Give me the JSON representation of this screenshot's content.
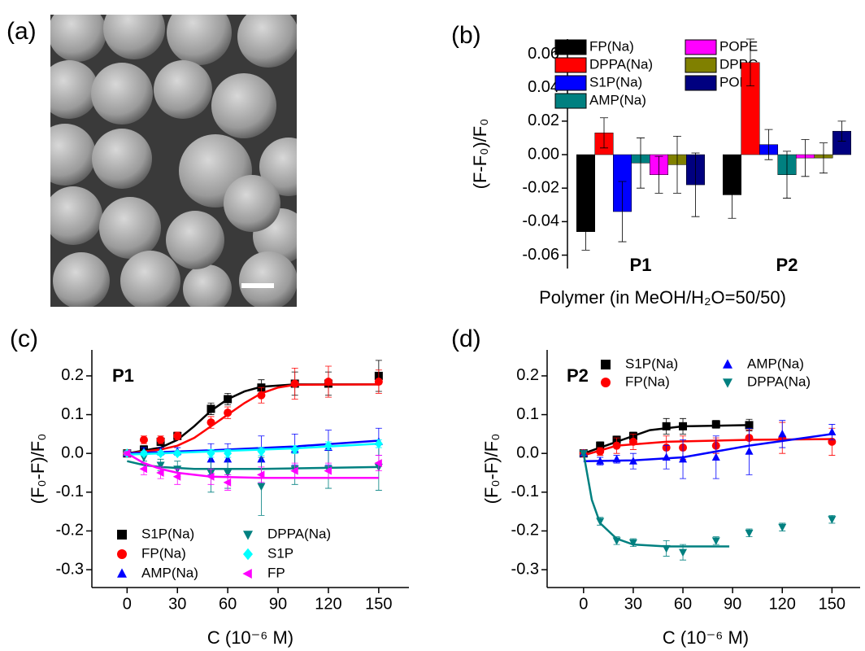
{
  "image_panel": {
    "label": "(a)"
  },
  "chart_data": [
    {
      "type": "bar",
      "panel_label": "(b)",
      "ylabel": "(F-F₀)/F₀",
      "xlabel": "Polymer (in MeOH/H₂O=50/50)",
      "categories": [
        "P1",
        "P2"
      ],
      "ylim": [
        -0.068,
        0.069
      ],
      "yticks": [
        -0.06,
        -0.04,
        -0.02,
        {
          "value": 0,
          "label": "0.00"
        },
        0.02,
        0.04,
        0.06
      ],
      "series": [
        {
          "name": "FP(Na)",
          "color": "#000000",
          "values": [
            -0.046,
            -0.024
          ],
          "errors": [
            0.011,
            0.014
          ]
        },
        {
          "name": "DPPA(Na)",
          "color": "#ff0000",
          "values": [
            0.013,
            0.055
          ],
          "errors": [
            0.009,
            0.014
          ]
        },
        {
          "name": "S1P(Na)",
          "color": "#0000ff",
          "values": [
            -0.034,
            0.006
          ],
          "errors": [
            0.018,
            0.009
          ]
        },
        {
          "name": "AMP(Na)",
          "color": "#008080",
          "values": [
            -0.005,
            -0.012
          ],
          "errors": [
            0.015,
            0.014
          ]
        },
        {
          "name": "POPE",
          "color": "#ff00ff",
          "values": [
            -0.012,
            -0.002
          ],
          "errors": [
            0.011,
            0.011
          ]
        },
        {
          "name": "DPPC",
          "color": "#808000",
          "values": [
            -0.006,
            -0.002
          ],
          "errors": [
            0.017,
            0.009
          ]
        },
        {
          "name": "POPC",
          "color": "#000080",
          "values": [
            -0.018,
            0.014
          ],
          "errors": [
            0.019,
            0.006
          ]
        }
      ]
    },
    {
      "type": "scatter",
      "panel_label": "(c)",
      "annotation": "P1",
      "ylabel": "(F₀-F)/F₀",
      "xlabel": "C (10⁻⁶ M)",
      "xlim": [
        -21,
        168
      ],
      "xticks": [
        0,
        30,
        60,
        90,
        120,
        150
      ],
      "ylim": [
        -0.346,
        0.267
      ],
      "yticks": [
        -0.3,
        -0.2,
        -0.1,
        {
          "value": 0,
          "label": "0.0"
        },
        0.1,
        0.2
      ],
      "series": [
        {
          "name": "S1P(Na)",
          "color": "#000000",
          "marker": "square",
          "x": [
            0,
            10,
            20,
            30,
            50,
            60,
            80,
            100,
            120,
            150
          ],
          "values": [
            0,
            0.01,
            0.03,
            0.045,
            0.115,
            0.14,
            0.17,
            0.18,
            0.18,
            0.2
          ],
          "errors": [
            0.005,
            0.01,
            0.01,
            0.01,
            0.015,
            0.015,
            0.02,
            0.03,
            0.03,
            0.04
          ],
          "fit": {
            "x": [
              0,
              20,
              30,
              40,
              50,
              60,
              70,
              80,
              100,
              150
            ],
            "values": [
              0,
              0.015,
              0.035,
              0.07,
              0.11,
              0.14,
              0.16,
              0.172,
              0.178,
              0.178
            ]
          }
        },
        {
          "name": "FP(Na)",
          "color": "#ff0000",
          "marker": "circle",
          "x": [
            0,
            10,
            20,
            30,
            50,
            60,
            80,
            100,
            120,
            150
          ],
          "values": [
            0,
            0.035,
            0.035,
            0.045,
            0.08,
            0.105,
            0.15,
            0.18,
            0.185,
            0.185
          ],
          "errors": [
            0.005,
            0.01,
            0.01,
            0.01,
            0.015,
            0.015,
            0.02,
            0.04,
            0.04,
            0.03
          ],
          "fit": {
            "x": [
              0,
              20,
              30,
              40,
              50,
              60,
              70,
              80,
              90,
              100,
              150
            ],
            "values": [
              0,
              0.01,
              0.02,
              0.04,
              0.07,
              0.1,
              0.13,
              0.155,
              0.17,
              0.177,
              0.178
            ]
          }
        },
        {
          "name": "AMP(Na)",
          "color": "#0000ff",
          "marker": "up",
          "x": [
            0,
            10,
            20,
            30,
            50,
            60,
            80,
            100,
            120,
            150
          ],
          "values": [
            0,
            0.005,
            0.005,
            0.005,
            -0.015,
            -0.015,
            -0.015,
            0.01,
            0.015,
            0.03
          ],
          "errors": [
            0.005,
            0.01,
            0.01,
            0.01,
            0.04,
            0.04,
            0.06,
            0.04,
            0.045,
            0.035
          ],
          "fit": {
            "x": [
              0,
              50,
              100,
              150
            ],
            "values": [
              0,
              0.008,
              0.018,
              0.033
            ]
          }
        },
        {
          "name": "DPPA(Na)",
          "color": "#008080",
          "marker": "down",
          "x": [
            0,
            10,
            20,
            30,
            50,
            60,
            80,
            100,
            120,
            150
          ],
          "values": [
            0,
            -0.01,
            -0.03,
            -0.04,
            -0.05,
            -0.05,
            -0.085,
            -0.04,
            -0.04,
            -0.035
          ],
          "errors": [
            0.005,
            0.01,
            0.015,
            0.02,
            0.05,
            0.04,
            0.075,
            0.04,
            0.05,
            0.06
          ],
          "fit": {
            "x": [
              0,
              10,
              20,
              40,
              60,
              80,
              150
            ],
            "values": [
              -0.02,
              -0.03,
              -0.035,
              -0.04,
              -0.04,
              -0.04,
              -0.035
            ]
          }
        },
        {
          "name": "S1P",
          "color": "#00ffff",
          "marker": "diamond",
          "x": [
            0,
            10,
            20,
            30,
            50,
            60,
            80,
            100,
            120,
            150
          ],
          "values": [
            0,
            0,
            0,
            0,
            0,
            0,
            0.005,
            0.01,
            0.02,
            0.025
          ],
          "errors": [
            0.005,
            0.005,
            0.005,
            0.005,
            0.01,
            0.01,
            0.01,
            0.01,
            0.01,
            0.01
          ],
          "fit": {
            "x": [
              0,
              50,
              100,
              150
            ],
            "values": [
              -0.003,
              0.005,
              0.013,
              0.025
            ]
          }
        },
        {
          "name": "FP",
          "color": "#ff00ff",
          "marker": "left",
          "x": [
            0,
            10,
            20,
            30,
            50,
            60,
            80,
            100,
            120,
            150
          ],
          "values": [
            0,
            -0.04,
            -0.05,
            -0.06,
            -0.06,
            -0.075,
            -0.055,
            -0.045,
            -0.045,
            -0.025
          ],
          "errors": [
            0.005,
            0.015,
            0.015,
            0.02,
            0.02,
            0.02,
            0.02,
            0.02,
            0.02,
            0.02
          ],
          "fit": {
            "x": [
              0,
              10,
              20,
              30,
              50,
              80,
              150
            ],
            "values": [
              0,
              -0.025,
              -0.04,
              -0.05,
              -0.06,
              -0.063,
              -0.063
            ]
          }
        }
      ]
    },
    {
      "type": "scatter",
      "panel_label": "(d)",
      "annotation": "P2",
      "ylabel": "(F₀-F)/F₀",
      "xlabel": "C (10⁻⁶ M)",
      "xlim": [
        -22,
        167
      ],
      "xticks": [
        0,
        30,
        60,
        90,
        120,
        150
      ],
      "ylim": [
        -0.346,
        0.267
      ],
      "yticks": [
        -0.3,
        -0.2,
        -0.1,
        {
          "value": 0,
          "label": "0.0"
        },
        0.1,
        0.2
      ],
      "series": [
        {
          "name": "S1P(Na)",
          "color": "#000000",
          "marker": "square",
          "x": [
            0,
            10,
            20,
            30,
            50,
            60,
            80,
            100
          ],
          "values": [
            0,
            0.02,
            0.035,
            0.045,
            0.07,
            0.07,
            0.075,
            0.073
          ],
          "errors": [
            0.005,
            0.01,
            0.01,
            0.01,
            0.02,
            0.02,
            0.01,
            0.015
          ],
          "fit": {
            "x": [
              0,
              20,
              40,
              60,
              100
            ],
            "values": [
              0,
              0.03,
              0.06,
              0.07,
              0.073
            ]
          }
        },
        {
          "name": "FP(Na)",
          "color": "#ff0000",
          "marker": "circle",
          "x": [
            0,
            10,
            20,
            30,
            50,
            60,
            80,
            100,
            120,
            150
          ],
          "values": [
            0,
            0.005,
            0.02,
            0.03,
            0.015,
            0.015,
            0.02,
            0.04,
            0.04,
            0.03
          ],
          "errors": [
            0.005,
            0.01,
            0.02,
            0.02,
            0.03,
            0.03,
            0.02,
            0.02,
            0.04,
            0.035
          ],
          "fit": {
            "x": [
              0,
              20,
              50,
              100,
              150
            ],
            "values": [
              -0.005,
              0.02,
              0.03,
              0.035,
              0.037
            ]
          }
        },
        {
          "name": "AMP(Na)",
          "color": "#0000ff",
          "marker": "up",
          "x": [
            0,
            10,
            20,
            30,
            50,
            60,
            80,
            100,
            120,
            150
          ],
          "values": [
            0,
            -0.02,
            -0.015,
            -0.02,
            -0.01,
            -0.015,
            -0.01,
            0.005,
            0.05,
            0.055
          ],
          "errors": [
            0.005,
            0.01,
            0.01,
            0.02,
            0.03,
            0.05,
            0.055,
            0.06,
            0.035,
            0.02
          ],
          "fit": {
            "x": [
              0,
              30,
              60,
              100,
              150
            ],
            "values": [
              -0.02,
              -0.018,
              -0.01,
              0.02,
              0.05
            ]
          }
        },
        {
          "name": "DPPA(Na)",
          "color": "#008080",
          "marker": "down",
          "x": [
            0,
            10,
            20,
            30,
            50,
            60,
            80,
            100,
            120,
            150
          ],
          "values": [
            0,
            -0.175,
            -0.225,
            -0.23,
            -0.245,
            -0.255,
            -0.225,
            -0.205,
            -0.19,
            -0.17
          ],
          "errors": [
            0.005,
            0.01,
            0.01,
            0.01,
            0.02,
            0.02,
            0.01,
            0.01,
            0.01,
            0.01
          ],
          "fit": {
            "x": [
              0,
              5,
              10,
              20,
              30,
              50,
              88
            ],
            "values": [
              0,
              -0.12,
              -0.18,
              -0.22,
              -0.235,
              -0.24,
              -0.24
            ]
          }
        }
      ]
    }
  ]
}
